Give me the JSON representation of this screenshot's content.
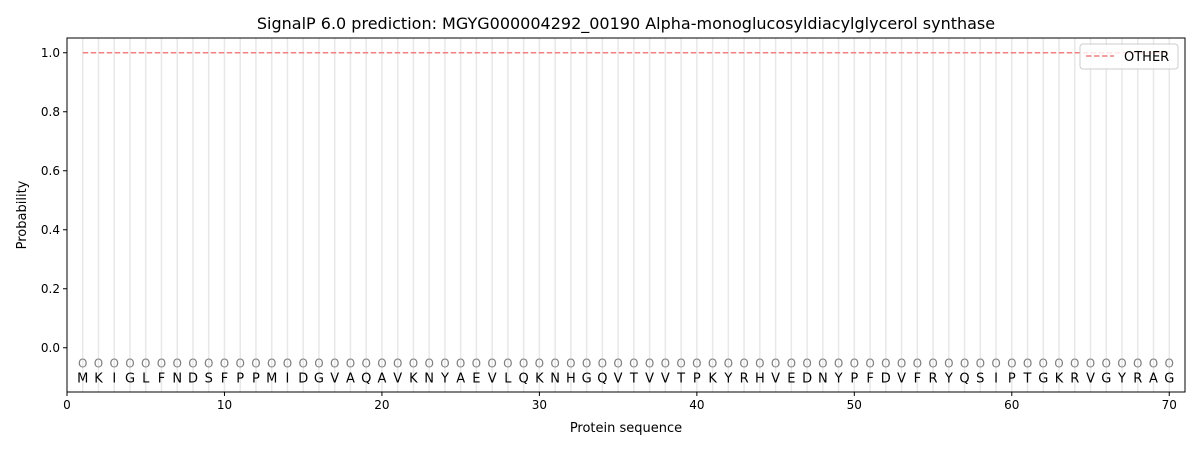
{
  "chart_data": {
    "type": "line",
    "title": "SignalP 6.0 prediction: MGYG000004292_00190 Alpha-monoglucosyldiacylglycerol synthase",
    "xlabel": "Protein sequence",
    "ylabel": "Probability",
    "xlim": [
      0,
      71
    ],
    "ylim": [
      -0.15,
      1.05
    ],
    "xticks": [
      0,
      10,
      20,
      30,
      40,
      50,
      60,
      70
    ],
    "yticks": [
      0.0,
      0.2,
      0.4,
      0.6,
      0.8,
      1.0
    ],
    "ytick_labels": [
      "0.0",
      "0.2",
      "0.4",
      "0.6",
      "0.8",
      "1.0"
    ],
    "grid": "vertical lines at each residue",
    "legend_position": "top-right",
    "sequence": [
      "M",
      "K",
      "I",
      "G",
      "L",
      "F",
      "N",
      "D",
      "S",
      "F",
      "P",
      "P",
      "M",
      "I",
      "D",
      "G",
      "V",
      "A",
      "Q",
      "A",
      "V",
      "K",
      "N",
      "Y",
      "A",
      "E",
      "V",
      "L",
      "Q",
      "K",
      "N",
      "H",
      "G",
      "Q",
      "V",
      "T",
      "V",
      "V",
      "T",
      "P",
      "K",
      "Y",
      "R",
      "H",
      "V",
      "E",
      "D",
      "N",
      "Y",
      "P",
      "F",
      "D",
      "V",
      "F",
      "R",
      "Y",
      "Q",
      "S",
      "I",
      "P",
      "T",
      "G",
      "K",
      "R",
      "V",
      "G",
      "Y",
      "R",
      "A",
      "G"
    ],
    "predicted_labels": "OOOOOOOOOOOOOOOOOOOOOOOOOOOOOOOOOOOOOOOOOOOOOOOOOOOOOOOOOOOOOOOOOOOOOO",
    "series": [
      {
        "name": "OTHER",
        "color": "#f08080",
        "style": "dashed",
        "x_range": [
          1,
          70
        ],
        "constant_value": 1.0
      }
    ]
  }
}
